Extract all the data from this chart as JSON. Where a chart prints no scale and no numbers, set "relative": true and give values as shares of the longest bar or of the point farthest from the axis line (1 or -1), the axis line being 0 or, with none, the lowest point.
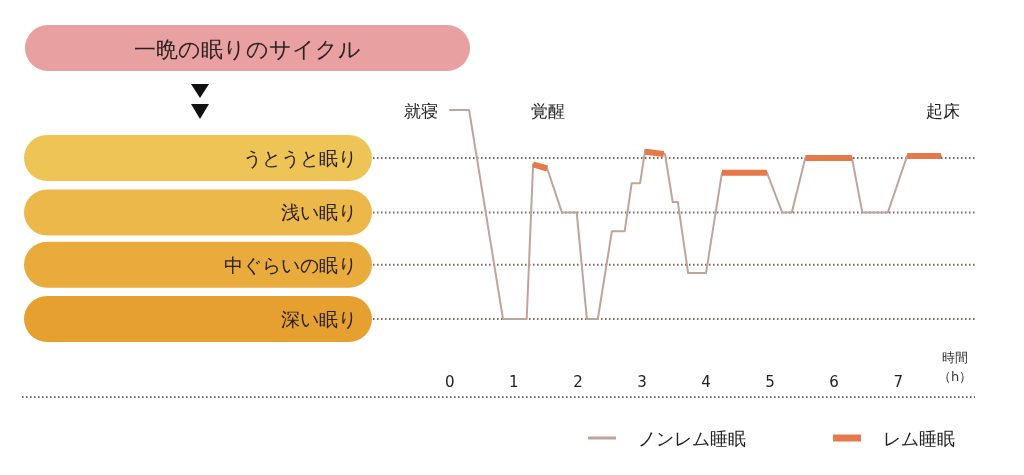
{
  "chart_data": {
    "type": "line",
    "title": "一晩の眠りのサイクル",
    "xlabel": "時間（h）",
    "xlim": [
      -1.2,
      8.2
    ],
    "xticks": [
      0,
      1,
      2,
      3,
      4,
      5,
      6,
      7
    ],
    "relative": true,
    "legend": "bottom right",
    "ref_lines": [
      {
        "axis": "y",
        "value": 0.77,
        "label": "うとうと眠り"
      },
      {
        "axis": "y",
        "value": 0.51,
        "label": "浅い眠り"
      },
      {
        "axis": "y",
        "value": 0.26,
        "label": "中ぐらいの眠り"
      },
      {
        "axis": "y",
        "value": 0,
        "label": "深い眠り"
      }
    ],
    "annotations": [
      {
        "text": "就寝",
        "x": 0,
        "y": 1
      },
      "覚醒",
      "起床"
    ],
    "series": [
      {
        "name": "ノンレム睡眠",
        "color": "#bfa49c",
        "x": [
          0,
          0.3,
          0.83,
          1.2,
          1.3,
          1.52,
          1.75,
          1.98,
          2.14,
          2.31,
          2.53,
          2.73,
          2.84,
          2.97,
          3.05,
          3.36,
          3.48,
          3.56,
          3.72,
          4.0,
          4.25,
          4.95,
          5.19,
          5.34,
          5.55,
          6.28,
          6.44,
          6.84,
          7.14,
          7.67
        ],
        "values": [
          1,
          1,
          0,
          0,
          0.74,
          0.72,
          0.51,
          0.51,
          0,
          0,
          0.42,
          0.42,
          0.65,
          0.65,
          0.81,
          0.79,
          0.56,
          0.56,
          0.22,
          0.22,
          0.7,
          0.7,
          0.51,
          0.51,
          0.77,
          0.77,
          0.51,
          0.51,
          0.78,
          0.78
        ]
      },
      {
        "name": "レム睡眠",
        "color": "#e5794a",
        "x": [
          1.3,
          1.52,
          1.6,
          3.05,
          3.34,
          3.4,
          4.25,
          4.95,
          5.0,
          5.55,
          6.28,
          6.3,
          7.14,
          7.67
        ],
        "values": [
          0.74,
          0.72,
          null,
          0.8,
          0.79,
          null,
          0.7,
          0.7,
          null,
          0.77,
          0.77,
          null,
          0.78,
          0.78
        ]
      }
    ]
  }
}
